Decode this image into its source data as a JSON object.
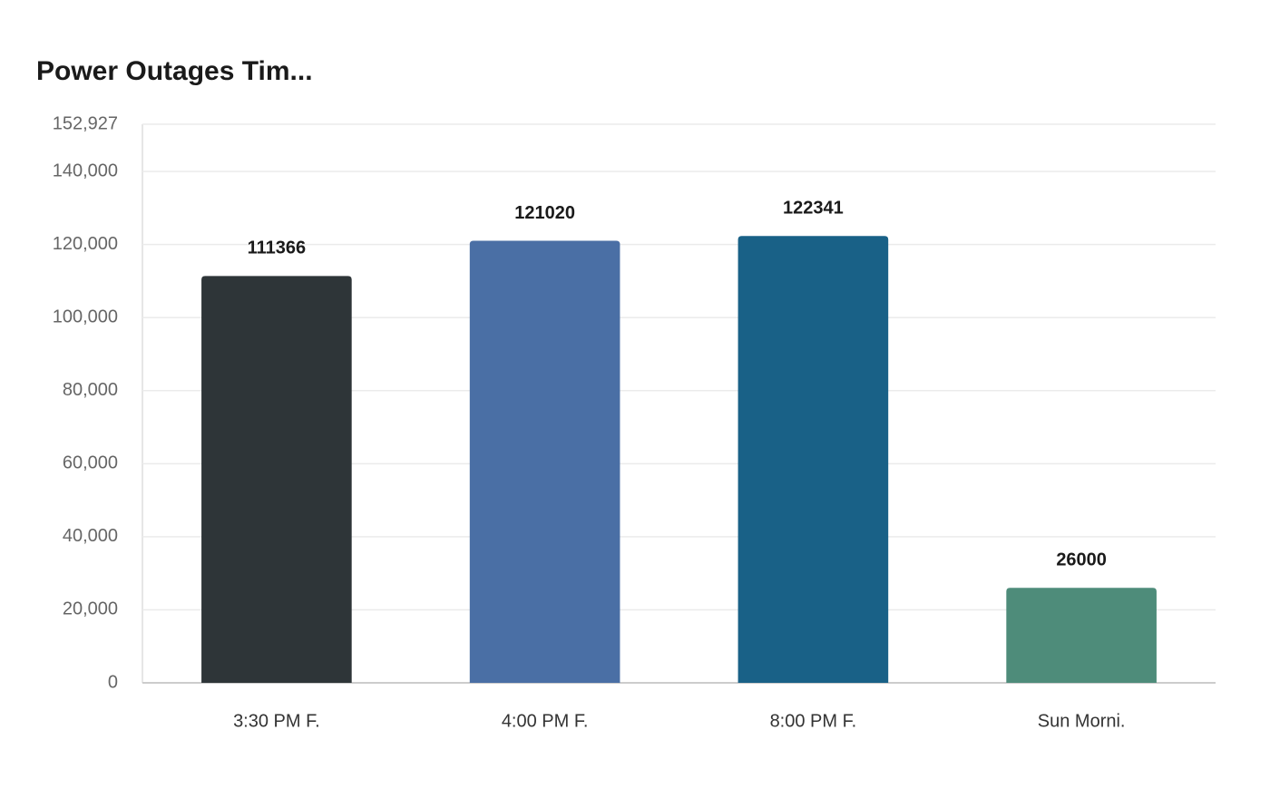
{
  "chart_data": {
    "type": "bar",
    "title": "Power Outages Tim...",
    "categories": [
      "3:30 PM F.",
      "4:00 PM F.",
      "8:00 PM F.",
      "Sun Morni."
    ],
    "values": [
      111366,
      121020,
      122341,
      26000
    ],
    "colors": [
      "#2e3538",
      "#4a6fa5",
      "#196187",
      "#4e8c7a"
    ],
    "ylim": [
      0,
      152927
    ],
    "yticks": [
      0,
      {
        "value": 20000,
        "label": "20,000"
      },
      {
        "value": 40000,
        "label": "40,000"
      },
      {
        "value": 60000,
        "label": "60,000"
      },
      {
        "value": 80000,
        "label": "80,000"
      },
      {
        "value": 100000,
        "label": "100,000"
      },
      {
        "value": 120000,
        "label": "120,000"
      },
      {
        "value": 140000,
        "label": "140,000"
      },
      {
        "value": 152927,
        "label": "152,927"
      }
    ],
    "grid": true
  }
}
